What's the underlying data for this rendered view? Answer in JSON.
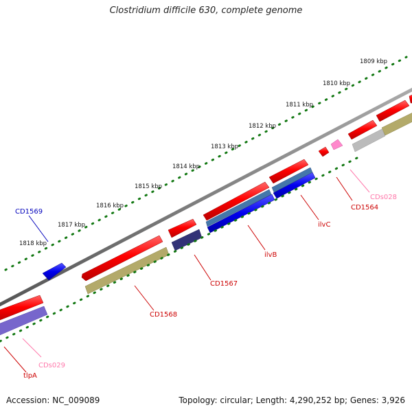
{
  "title": "Clostridium difficile 630, complete genome",
  "footer": {
    "accession": "Accession: NC_009089",
    "summary": "Topology: circular; Length: 4,290,252 bp; Genes: 3,926"
  },
  "ticks": [
    "1809 kbp",
    "1810 kbp",
    "1811 kbp",
    "1812 kbp",
    "1813 kbp",
    "1814 kbp",
    "1815 kbp",
    "1816 kbp",
    "1817 kbp",
    "1818 kbp"
  ],
  "labels": {
    "cd1569": "CD1569",
    "cds029": "CDs029",
    "tlpa": "tlpA",
    "cd1568": "CD1568",
    "cd1567": "CD1567",
    "ilvb": "ilvB",
    "ilvc": "ilvC",
    "cd1564": "CD1564",
    "cds028": "CDs028"
  },
  "colors": {
    "red_feature": "#ff0000",
    "blue_feature": "#0000ee",
    "navy_feature": "#333377",
    "olive_feature": "#b3aa6a",
    "steelblue_feature": "#4477aa",
    "lavender_feature": "#7766cc",
    "pink_feature": "#ff88cc",
    "grey_feature": "#bbbbbb",
    "backbone": "#808080",
    "tick": "#117711",
    "label_red": "#cc0000",
    "label_blue": "#0000bb",
    "label_pink": "#ff77aa"
  }
}
